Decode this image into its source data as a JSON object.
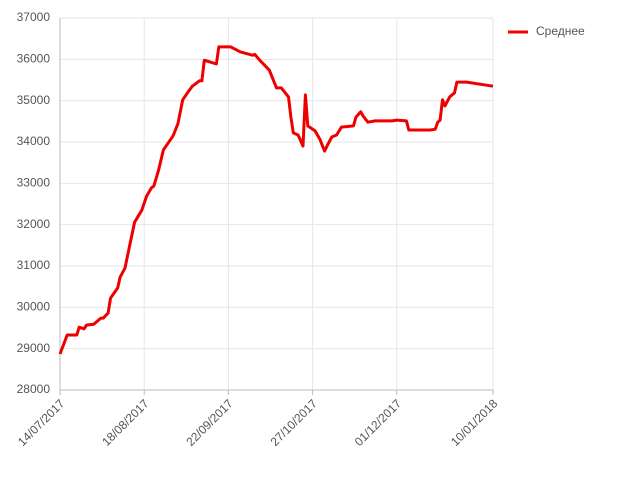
{
  "chart_data": {
    "type": "line",
    "x": [
      "14/07/2017",
      "17/07/2017",
      "21/07/2017",
      "22/07/2017",
      "24/07/2017",
      "25/07/2017",
      "28/07/2017",
      "31/07/2017",
      "01/08/2017",
      "03/08/2017",
      "04/08/2017",
      "07/08/2017",
      "08/08/2017",
      "10/08/2017",
      "12/08/2017",
      "14/08/2017",
      "17/08/2017",
      "19/08/2017",
      "21/08/2017",
      "22/08/2017",
      "24/08/2017",
      "26/08/2017",
      "28/08/2017",
      "30/08/2017",
      "01/09/2017",
      "03/09/2017",
      "05/09/2017",
      "07/09/2017",
      "10/09/2017",
      "11/09/2017",
      "12/09/2017",
      "17/09/2017",
      "18/09/2017",
      "23/09/2017",
      "24/09/2017",
      "27/09/2017",
      "02/10/2017",
      "03/10/2017",
      "05/10/2017",
      "09/10/2017",
      "12/10/2017",
      "14/10/2017",
      "17/10/2017",
      "18/10/2017",
      "19/10/2017",
      "21/10/2017",
      "23/10/2017",
      "24/10/2017",
      "25/10/2017",
      "28/10/2017",
      "30/10/2017",
      "01/11/2017",
      "02/11/2017",
      "04/11/2017",
      "06/11/2017",
      "08/11/2017",
      "13/11/2017",
      "14/11/2017",
      "16/11/2017",
      "17/11/2017",
      "19/11/2017",
      "22/11/2017",
      "29/11/2017",
      "01/12/2017",
      "05/12/2017",
      "06/12/2017",
      "15/12/2017",
      "17/12/2017",
      "18/12/2017",
      "19/12/2017",
      "20/12/2017",
      "21/12/2017",
      "23/12/2017",
      "25/12/2017",
      "26/12/2017",
      "30/12/2017",
      "10/01/2018"
    ],
    "series": [
      {
        "name": "Среднее",
        "color": "#ee0000",
        "values": [
          28870,
          29330,
          29330,
          29520,
          29480,
          29570,
          29590,
          29740,
          29740,
          29860,
          30220,
          30470,
          30730,
          30950,
          31510,
          32060,
          32350,
          32690,
          32890,
          32930,
          33320,
          33810,
          33980,
          34150,
          34440,
          35020,
          35190,
          35350,
          35480,
          35480,
          35980,
          35890,
          36300,
          36300,
          36270,
          36180,
          36100,
          36120,
          35980,
          35740,
          35310,
          35310,
          35090,
          34600,
          34220,
          34170,
          33900,
          35140,
          34390,
          34270,
          34070,
          33780,
          33900,
          34120,
          34170,
          34360,
          34390,
          34600,
          34730,
          34630,
          34480,
          34510,
          34510,
          34530,
          34510,
          34290,
          34290,
          34310,
          34480,
          34530,
          35020,
          34870,
          35090,
          35190,
          35450,
          35450,
          35350
        ]
      }
    ],
    "xlim": [
      "14/07/2017",
      "10/01/2018"
    ],
    "xticks": [
      "14/07/2017",
      "18/08/2017",
      "22/09/2017",
      "27/10/2017",
      "01/12/2017",
      "10/01/2018"
    ],
    "ylim": [
      28000,
      37000
    ],
    "yticks": [
      28000,
      29000,
      30000,
      31000,
      32000,
      33000,
      34000,
      35000,
      36000,
      37000
    ],
    "grid": true,
    "legend": "top-right"
  }
}
